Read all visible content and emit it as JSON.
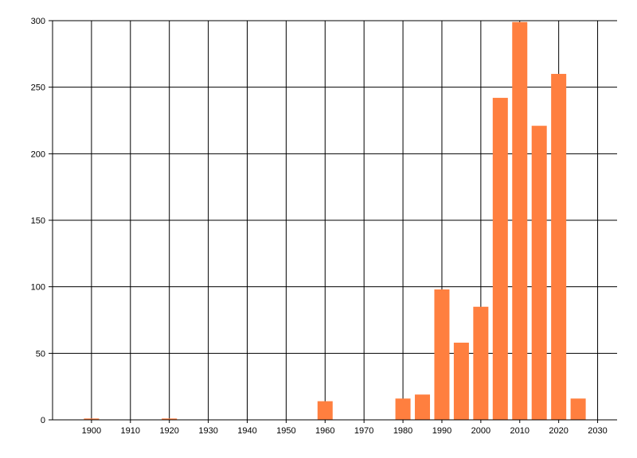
{
  "chart_data": {
    "type": "bar",
    "title": "",
    "xlabel": "",
    "ylabel": "",
    "x": [
      1900,
      1920,
      1960,
      1980,
      1985,
      1990,
      1995,
      2000,
      2005,
      2010,
      2015,
      2020,
      2025
    ],
    "values": [
      1,
      1,
      14,
      16,
      19,
      98,
      58,
      85,
      242,
      299,
      221,
      260,
      16
    ],
    "xlim": [
      1890,
      2035
    ],
    "ylim": [
      0,
      300
    ],
    "x_ticks": [
      "1900",
      "1910",
      "1920",
      "1930",
      "1940",
      "1950",
      "1960",
      "1970",
      "1980",
      "1990",
      "2000",
      "2010",
      "2020",
      "2030"
    ],
    "y_ticks": [
      "0",
      "50",
      "100",
      "150",
      "200",
      "250",
      "300"
    ],
    "grid": true,
    "legend": "none",
    "colors": {
      "bar": "#ff7f3f",
      "grid": "#000000",
      "axis": "#000000"
    }
  }
}
